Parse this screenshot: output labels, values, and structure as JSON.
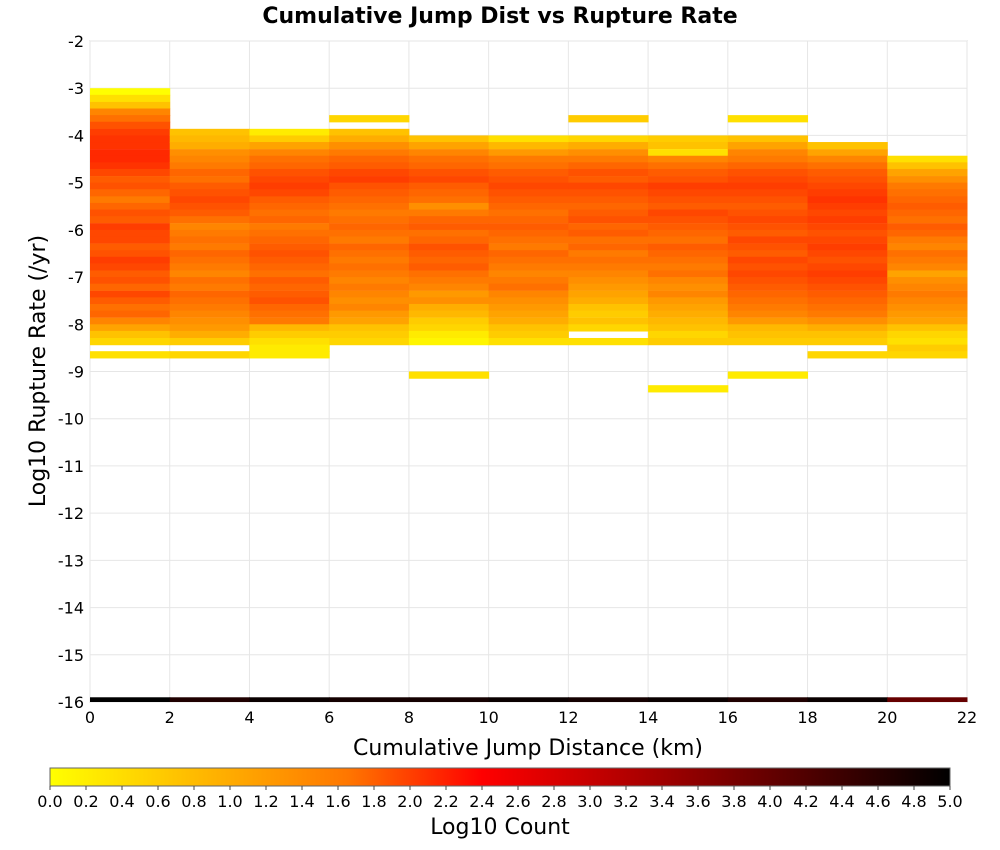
{
  "chart_data": {
    "type": "heatmap",
    "title": "Cumulative Jump Dist vs Rupture Rate",
    "xlabel": "Cumulative Jump Distance (km)",
    "ylabel": "Log10 Rupture Rate (/yr)",
    "colorbar_label": "Log10 Count",
    "xlim": [
      0,
      22
    ],
    "ylim": [
      -16,
      -2
    ],
    "x_ticks": [
      0,
      2,
      4,
      6,
      8,
      10,
      12,
      14,
      16,
      18,
      20,
      22
    ],
    "y_ticks": [
      -16,
      -15,
      -14,
      -13,
      -12,
      -11,
      -10,
      -9,
      -8,
      -7,
      -6,
      -5,
      -4,
      -3,
      -2
    ],
    "colorbar_ticks": [
      "0.0",
      "0.2",
      "0.4",
      "0.6",
      "0.8",
      "1.0",
      "1.2",
      "1.4",
      "1.6",
      "1.8",
      "2.0",
      "2.2",
      "2.4",
      "2.6",
      "2.8",
      "3.0",
      "3.2",
      "3.4",
      "3.6",
      "3.8",
      "4.0",
      "4.2",
      "4.4",
      "4.6",
      "4.8",
      "5.0"
    ],
    "color_range": [
      0,
      5
    ],
    "colorscale": [
      "#ffff00",
      "#ffaa00",
      "#ff5500",
      "#ff0000",
      "#aa0000",
      "#550000",
      "#000000"
    ],
    "grid": true,
    "x_bin_width": 2,
    "y_bin_height": 0.1429,
    "x_bins_left_edges": [
      0,
      2,
      4,
      6,
      8,
      10,
      12,
      14,
      16,
      18,
      20
    ],
    "y_bins_top_edges": [
      -3.0,
      -3.14,
      -3.29,
      -3.43,
      -3.57,
      -3.71,
      -3.86,
      -4.0,
      -4.14,
      -4.29,
      -4.43,
      -4.57,
      -4.71,
      -4.86,
      -5.0,
      -5.14,
      -5.29,
      -5.43,
      -5.57,
      -5.71,
      -5.86,
      -6.0,
      -6.14,
      -6.29,
      -6.43,
      -6.57,
      -6.71,
      -6.86,
      -7.0,
      -7.14,
      -7.29,
      -7.43,
      -7.57,
      -7.71,
      -7.86,
      -8.0,
      -8.14,
      -8.29,
      -8.43,
      -8.57,
      -8.71,
      -8.86,
      -9.0,
      -9.14,
      -9.29,
      -9.43,
      -9.57,
      -9.71,
      -9.86,
      -10.0,
      -10.14,
      -10.29,
      -10.43,
      -10.57,
      -10.71,
      -10.86,
      -11.0,
      -11.14,
      -11.29,
      -11.43,
      -11.57,
      -11.71,
      -11.86,
      -12.0,
      -12.14,
      -12.29,
      -12.43,
      -12.57,
      -12.71,
      -12.86,
      -13.0,
      -13.14,
      -13.29,
      -13.43,
      -13.57,
      -13.71,
      -13.86,
      -14.0
    ],
    "values": [
      [
        0.0,
        0.3,
        0.6,
        1.2,
        1.4,
        1.7,
        1.9,
        2.0,
        2.0,
        2.1,
        2.1,
        2.0,
        1.8,
        1.6,
        1.7,
        1.5,
        1.3,
        1.5,
        1.7,
        1.6,
        1.9,
        1.8,
        1.8,
        1.6,
        1.7,
        1.9,
        1.8,
        1.6,
        1.7,
        1.5,
        1.8,
        1.6,
        1.4,
        1.5,
        1.2,
        0.9,
        0.6,
        0.4,
        null,
        0.3,
        null,
        null,
        null,
        null,
        null,
        null,
        null,
        null,
        null,
        null,
        null,
        null,
        null,
        null,
        null,
        null,
        null,
        null,
        null,
        null,
        null,
        null,
        null,
        null,
        null,
        null,
        null,
        null,
        null,
        null,
        null,
        null,
        null,
        null,
        null,
        null,
        null,
        null
      ],
      [
        null,
        null,
        null,
        null,
        null,
        null,
        0.6,
        0.7,
        0.8,
        1.1,
        1.2,
        1.3,
        1.5,
        1.4,
        1.6,
        1.7,
        1.8,
        1.7,
        1.6,
        1.4,
        1.2,
        1.3,
        1.4,
        1.3,
        1.5,
        1.4,
        1.3,
        1.2,
        1.4,
        1.3,
        1.5,
        1.4,
        1.3,
        1.2,
        1.1,
        1.0,
        0.8,
        0.5,
        null,
        0.4,
        null,
        null,
        null,
        null,
        null,
        null,
        null,
        null,
        null,
        null,
        null,
        null,
        null,
        null,
        null,
        null,
        null,
        null,
        null,
        null,
        null,
        null,
        null,
        null,
        null,
        null,
        null,
        null,
        null,
        null,
        null,
        null,
        null,
        null,
        null,
        null,
        null,
        null
      ],
      [
        null,
        null,
        null,
        null,
        null,
        null,
        0.2,
        0.5,
        0.9,
        1.2,
        1.4,
        1.5,
        1.7,
        1.8,
        1.9,
        1.8,
        1.6,
        1.5,
        1.4,
        1.5,
        1.3,
        1.4,
        1.5,
        1.6,
        1.7,
        1.6,
        1.5,
        1.4,
        1.6,
        1.5,
        1.6,
        1.7,
        1.5,
        1.4,
        1.3,
        0.7,
        0.5,
        0.3,
        0.2,
        0.2,
        null,
        null,
        null,
        null,
        null,
        null,
        null,
        null,
        null,
        null,
        null,
        null,
        null,
        null,
        null,
        null,
        null,
        null,
        null,
        null,
        null,
        null,
        null,
        null,
        null,
        null,
        null,
        null,
        null,
        null,
        null,
        null,
        null,
        null,
        null,
        null,
        null,
        null
      ],
      [
        null,
        null,
        null,
        null,
        0.4,
        null,
        0.6,
        0.8,
        1.1,
        1.3,
        1.5,
        1.6,
        1.8,
        1.9,
        1.7,
        1.6,
        1.5,
        1.4,
        1.3,
        1.4,
        1.5,
        1.4,
        1.3,
        1.5,
        1.4,
        1.3,
        1.4,
        1.3,
        1.2,
        1.3,
        1.2,
        1.1,
        1.2,
        1.0,
        0.9,
        0.6,
        0.5,
        0.4,
        null,
        null,
        null,
        null,
        null,
        null,
        null,
        null,
        null,
        null,
        null,
        null,
        null,
        null,
        null,
        null,
        null,
        null,
        null,
        null,
        null,
        null,
        null,
        null,
        null,
        null,
        null,
        null,
        null,
        null,
        null,
        null,
        null,
        null,
        null,
        null,
        null,
        null,
        null,
        null
      ],
      [
        null,
        null,
        null,
        null,
        null,
        null,
        null,
        0.6,
        0.9,
        1.2,
        1.4,
        1.5,
        1.7,
        1.8,
        1.6,
        1.5,
        1.4,
        1.1,
        1.3,
        1.5,
        1.6,
        1.4,
        1.5,
        1.7,
        1.6,
        1.5,
        1.6,
        1.4,
        1.3,
        1.2,
        1.0,
        1.1,
        0.8,
        0.7,
        0.5,
        0.4,
        0.2,
        0.1,
        null,
        null,
        null,
        null,
        0.3,
        null,
        null,
        null,
        null,
        null,
        null,
        null,
        null,
        null,
        null,
        null,
        null,
        null,
        null,
        null,
        null,
        null,
        null,
        null,
        null,
        null,
        null,
        null,
        null,
        null,
        null,
        null,
        null,
        null,
        null,
        null,
        null,
        null,
        null,
        null
      ],
      [
        null,
        null,
        null,
        null,
        null,
        null,
        null,
        0.3,
        0.7,
        1.0,
        1.3,
        1.4,
        1.6,
        1.7,
        1.8,
        1.7,
        1.6,
        1.5,
        1.4,
        1.5,
        1.6,
        1.5,
        1.4,
        1.3,
        1.5,
        1.4,
        1.3,
        1.2,
        1.3,
        1.4,
        1.2,
        1.1,
        1.0,
        0.9,
        0.8,
        0.6,
        0.5,
        0.3,
        null,
        null,
        null,
        null,
        null,
        null,
        null,
        null,
        null,
        null,
        null,
        null,
        null,
        null,
        null,
        null,
        null,
        null,
        null,
        null,
        null,
        null,
        null,
        null,
        null,
        null,
        null,
        null,
        null,
        null,
        null,
        null,
        null,
        null,
        null,
        null,
        null,
        null,
        null,
        null
      ],
      [
        null,
        null,
        null,
        null,
        0.5,
        null,
        null,
        0.4,
        0.8,
        1.1,
        1.3,
        1.5,
        1.7,
        1.6,
        1.8,
        1.7,
        1.6,
        1.5,
        1.6,
        1.7,
        1.5,
        1.6,
        1.4,
        1.5,
        1.3,
        1.4,
        1.3,
        1.2,
        1.1,
        1.0,
        0.9,
        0.8,
        0.6,
        0.5,
        0.6,
        0.4,
        null,
        0.3,
        null,
        null,
        null,
        null,
        null,
        null,
        null,
        null,
        null,
        null,
        null,
        null,
        null,
        null,
        null,
        null,
        null,
        null,
        null,
        null,
        null,
        null,
        null,
        null,
        null,
        null,
        null,
        null,
        null,
        null,
        null,
        null,
        null,
        null,
        null,
        null,
        null,
        null,
        null,
        null
      ],
      [
        null,
        null,
        null,
        null,
        null,
        null,
        null,
        0.5,
        0.6,
        0.3,
        1.2,
        1.4,
        1.6,
        1.7,
        1.9,
        1.8,
        1.7,
        1.6,
        1.8,
        1.7,
        1.6,
        1.5,
        1.4,
        1.6,
        1.5,
        1.4,
        1.3,
        1.4,
        1.2,
        1.1,
        1.2,
        1.0,
        0.9,
        0.8,
        0.7,
        0.6,
        0.4,
        0.5,
        null,
        null,
        null,
        null,
        null,
        null,
        0.2,
        null,
        null,
        null,
        null,
        null,
        null,
        null,
        null,
        null,
        null,
        null,
        null,
        null,
        null,
        null,
        null,
        null,
        null,
        null,
        null,
        null,
        null,
        null,
        null,
        null,
        null,
        null,
        null,
        null,
        null,
        null,
        null,
        null
      ],
      [
        null,
        null,
        null,
        null,
        0.3,
        null,
        null,
        0.6,
        0.9,
        1.2,
        1.3,
        1.5,
        1.7,
        1.8,
        1.9,
        1.8,
        1.7,
        1.6,
        1.7,
        1.8,
        1.7,
        1.6,
        1.8,
        1.7,
        1.6,
        1.8,
        1.7,
        1.8,
        1.7,
        1.6,
        1.5,
        1.4,
        1.3,
        1.2,
        1.0,
        0.7,
        0.6,
        0.5,
        null,
        null,
        null,
        null,
        0.2,
        null,
        null,
        null,
        null,
        null,
        null,
        null,
        null,
        null,
        null,
        null,
        null,
        null,
        null,
        null,
        null,
        null,
        null,
        null,
        null,
        null,
        null,
        null,
        null,
        null,
        null,
        null,
        null,
        null,
        null,
        null,
        null,
        null,
        null,
        null
      ],
      [
        null,
        null,
        null,
        null,
        null,
        null,
        null,
        null,
        0.6,
        0.9,
        1.2,
        1.4,
        1.6,
        1.7,
        1.8,
        1.9,
        2.0,
        1.9,
        1.8,
        1.9,
        1.8,
        1.7,
        1.8,
        1.9,
        1.8,
        1.7,
        1.8,
        1.9,
        1.8,
        1.7,
        1.6,
        1.5,
        1.4,
        1.3,
        1.1,
        0.8,
        0.6,
        0.5,
        null,
        0.4,
        null,
        null,
        null,
        null,
        null,
        null,
        null,
        null,
        null,
        null,
        null,
        null,
        null,
        null,
        null,
        null,
        null,
        null,
        null,
        null,
        null,
        null,
        null,
        null,
        null,
        null,
        null,
        null,
        null,
        null,
        null,
        null,
        null,
        null,
        null,
        null,
        null,
        null
      ],
      [
        null,
        null,
        null,
        null,
        null,
        null,
        null,
        null,
        null,
        null,
        0.3,
        0.6,
        0.9,
        1.1,
        1.3,
        1.4,
        1.5,
        1.6,
        1.5,
        1.4,
        1.6,
        1.5,
        1.3,
        1.2,
        1.4,
        1.3,
        1.2,
        0.9,
        1.1,
        1.2,
        1.3,
        1.2,
        1.1,
        1.0,
        0.9,
        0.6,
        0.4,
        0.3,
        0.5,
        0.4,
        null,
        null,
        null,
        null,
        null,
        null,
        null,
        null,
        null,
        null,
        null,
        null,
        null,
        null,
        null,
        null,
        null,
        null,
        null,
        null,
        null,
        null,
        null,
        null,
        null,
        null,
        null,
        null,
        null,
        null,
        null,
        null,
        null,
        null,
        null,
        null,
        null,
        null
      ]
    ]
  }
}
